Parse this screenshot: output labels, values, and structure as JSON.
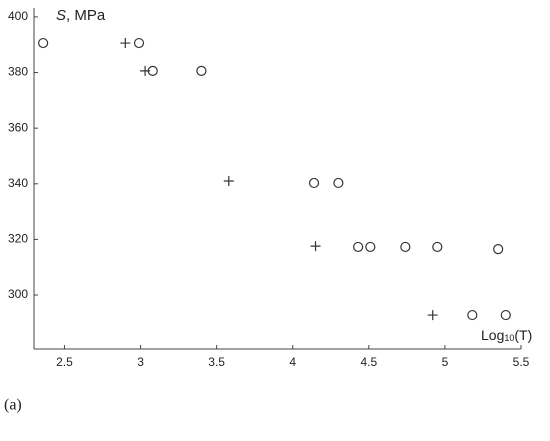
{
  "chart_data": {
    "type": "scatter",
    "y_label_symbol": "S",
    "y_label_unit": ", MPa",
    "x_label": "Log",
    "x_label_sub": "10",
    "x_label_suffix": "(T)",
    "caption": "(a)",
    "xlim": [
      2.3,
      5.5
    ],
    "ylim": [
      280.6,
      403.2
    ],
    "xticks": [
      2.5,
      3,
      3.5,
      4,
      4.5,
      5,
      5.5
    ],
    "yticks": [
      300,
      320,
      340,
      360,
      380,
      400
    ],
    "grid": false,
    "series": [
      {
        "marker": "circle",
        "color": "#333333",
        "x": [
          2.36,
          2.99,
          3.08,
          3.4,
          4.14,
          4.3,
          4.43,
          4.51,
          4.74,
          4.95,
          5.35,
          5.18,
          5.4
        ],
        "values": [
          390.6,
          390.6,
          380.6,
          380.6,
          340.3,
          340.3,
          317.3,
          317.3,
          317.3,
          317.3,
          316.5,
          292.8,
          292.8
        ]
      },
      {
        "marker": "plus",
        "color": "#333333",
        "x": [
          2.9,
          3.03,
          3.58,
          4.15,
          4.92
        ],
        "values": [
          390.6,
          380.6,
          341.0,
          317.6,
          292.8
        ]
      }
    ]
  }
}
